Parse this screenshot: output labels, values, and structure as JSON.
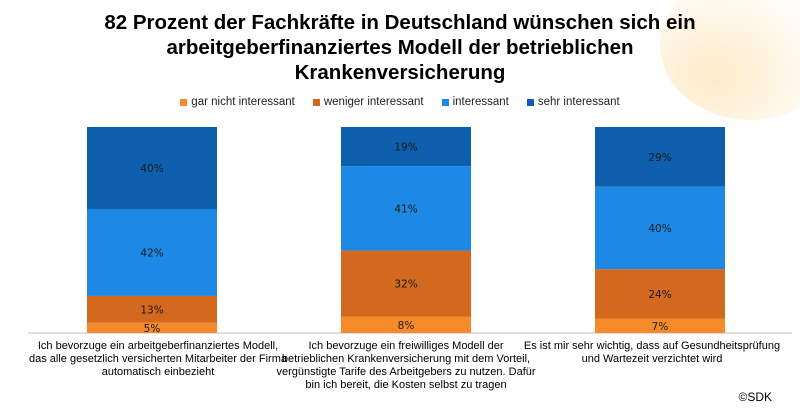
{
  "title_lines": [
    "82 Prozent der Fachkräfte in Deutschland wünschen sich ein",
    "arbeitgeberfinanziertes Modell der betrieblichen",
    "Krankenversicherung"
  ],
  "copyright": "©SDK",
  "chart_data": {
    "type": "bar",
    "stacked": true,
    "percent_stacked": true,
    "legend_position": "top",
    "categories": [
      "Ich bevorzuge ein arbeitgeberfinanziertes Modell, das alle gesetzlich versicherten Mitarbeiter der Firma automatisch einbezieht",
      "Ich bevorzuge ein freiwilliges Modell der betrieblichen Krankenversicherung mit dem Vorteil, vergünstigte Tarife des Arbeitgebers zu nutzen. Dafür bin ich bereit, die Kosten selbst zu tragen",
      "Es ist mir sehr wichtig, dass auf Gesundheitsprüfung und Wartezeit verzichtet wird"
    ],
    "series": [
      {
        "name": "gar nicht interessant",
        "color": "#f58a2a",
        "values": [
          5,
          8,
          7
        ]
      },
      {
        "name": "weniger interessant",
        "color": "#d2691e",
        "values": [
          13,
          32,
          24
        ]
      },
      {
        "name": "interessant",
        "color": "#1e88e5",
        "values": [
          42,
          41,
          40
        ]
      },
      {
        "name": "sehr interessant",
        "color": "#0d5fad",
        "values": [
          40,
          19,
          29
        ]
      }
    ],
    "data_labels": [
      [
        "5%",
        "8%",
        "7%"
      ],
      [
        "13%",
        "32%",
        "24%"
      ],
      [
        "42%",
        "41%",
        "40%"
      ],
      [
        "40%",
        "19%",
        "29%"
      ]
    ]
  }
}
